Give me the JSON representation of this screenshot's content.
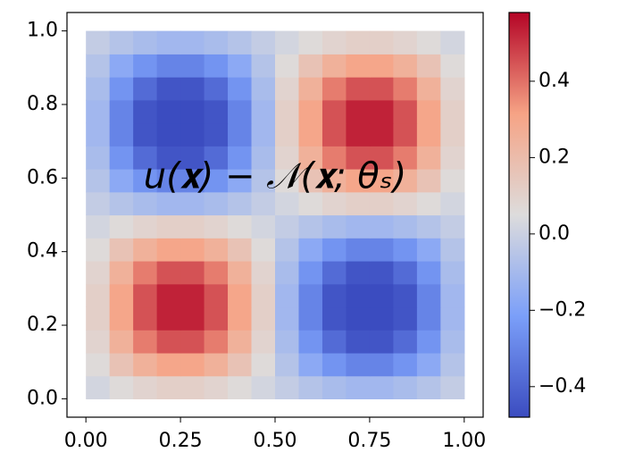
{
  "chart_data": {
    "type": "heatmap",
    "annotation": "u(𝐱) − 𝒩(𝐱; θₛ)",
    "colormap": "coolwarm",
    "xlim": [
      -0.05,
      1.05
    ],
    "ylim": [
      -0.05,
      1.05
    ],
    "extent": [
      0,
      1,
      0,
      1
    ],
    "xticks": [
      {
        "value": 0,
        "label": "0.00"
      },
      0.25,
      {
        "value": 0.5,
        "label": "0.50"
      },
      0.75,
      {
        "value": 1,
        "label": "1.00"
      }
    ],
    "yticks": [
      {
        "value": 0,
        "label": "0.0"
      },
      0.2,
      0.4,
      0.6,
      0.8,
      {
        "value": 1,
        "label": "1.0"
      }
    ],
    "clim": [
      -0.48,
      0.58
    ],
    "cticks": [
      {
        "value": -0.4,
        "label": "−0.4"
      },
      {
        "value": -0.2,
        "label": "−0.2"
      },
      {
        "value": 0,
        "label": "0.0"
      },
      0.2,
      0.4
    ],
    "z": [
      [
        0.02,
        0.06,
        0.09,
        0.11,
        0.11,
        0.09,
        0.06,
        0.02,
        -0.02,
        -0.06,
        -0.09,
        -0.11,
        -0.11,
        -0.09,
        -0.06,
        -0.02
      ],
      [
        0.06,
        0.17,
        0.25,
        0.3,
        0.3,
        0.25,
        0.17,
        0.06,
        -0.06,
        -0.17,
        -0.25,
        -0.3,
        -0.3,
        -0.25,
        -0.17,
        -0.06
      ],
      [
        0.09,
        0.25,
        0.38,
        0.45,
        0.45,
        0.38,
        0.25,
        0.09,
        -0.09,
        -0.25,
        -0.38,
        -0.45,
        -0.45,
        -0.38,
        -0.25,
        -0.09
      ],
      [
        0.11,
        0.3,
        0.45,
        0.53,
        0.53,
        0.45,
        0.3,
        0.11,
        -0.11,
        -0.3,
        -0.45,
        -0.53,
        -0.53,
        -0.45,
        -0.3,
        -0.11
      ],
      [
        0.11,
        0.3,
        0.45,
        0.53,
        0.53,
        0.45,
        0.3,
        0.11,
        -0.11,
        -0.3,
        -0.45,
        -0.53,
        -0.53,
        -0.45,
        -0.3,
        -0.11
      ],
      [
        0.09,
        0.25,
        0.38,
        0.45,
        0.45,
        0.38,
        0.25,
        0.09,
        -0.09,
        -0.25,
        -0.38,
        -0.45,
        -0.45,
        -0.38,
        -0.25,
        -0.09
      ],
      [
        0.06,
        0.17,
        0.25,
        0.3,
        0.3,
        0.25,
        0.17,
        0.06,
        -0.06,
        -0.17,
        -0.25,
        -0.3,
        -0.3,
        -0.25,
        -0.17,
        -0.06
      ],
      [
        0.02,
        0.06,
        0.09,
        0.11,
        0.11,
        0.09,
        0.06,
        0.02,
        -0.02,
        -0.06,
        -0.09,
        -0.11,
        -0.11,
        -0.09,
        -0.06,
        -0.02
      ],
      [
        -0.02,
        -0.06,
        -0.09,
        -0.11,
        -0.11,
        -0.09,
        -0.06,
        -0.02,
        0.02,
        0.06,
        0.09,
        0.11,
        0.11,
        0.09,
        0.06,
        0.02
      ],
      [
        -0.06,
        -0.17,
        -0.25,
        -0.3,
        -0.3,
        -0.25,
        -0.17,
        -0.06,
        0.06,
        0.17,
        0.25,
        0.3,
        0.3,
        0.25,
        0.17,
        0.06
      ],
      [
        -0.09,
        -0.25,
        -0.38,
        -0.45,
        -0.45,
        -0.38,
        -0.25,
        -0.09,
        0.09,
        0.25,
        0.38,
        0.45,
        0.45,
        0.38,
        0.25,
        0.09
      ],
      [
        -0.11,
        -0.3,
        -0.45,
        -0.53,
        -0.53,
        -0.45,
        -0.3,
        -0.11,
        0.11,
        0.3,
        0.45,
        0.53,
        0.53,
        0.45,
        0.3,
        0.11
      ],
      [
        -0.11,
        -0.3,
        -0.45,
        -0.53,
        -0.53,
        -0.45,
        -0.3,
        -0.11,
        0.11,
        0.3,
        0.45,
        0.53,
        0.53,
        0.45,
        0.3,
        0.11
      ],
      [
        -0.09,
        -0.25,
        -0.38,
        -0.45,
        -0.45,
        -0.38,
        -0.25,
        -0.09,
        0.09,
        0.25,
        0.38,
        0.45,
        0.45,
        0.38,
        0.25,
        0.09
      ],
      [
        -0.06,
        -0.17,
        -0.25,
        -0.3,
        -0.3,
        -0.25,
        -0.17,
        -0.06,
        0.06,
        0.17,
        0.25,
        0.3,
        0.3,
        0.25,
        0.17,
        0.06
      ],
      [
        -0.02,
        -0.06,
        -0.09,
        -0.11,
        -0.11,
        -0.09,
        -0.06,
        -0.02,
        0.02,
        0.06,
        0.09,
        0.11,
        0.11,
        0.09,
        0.06,
        0.02
      ]
    ]
  }
}
